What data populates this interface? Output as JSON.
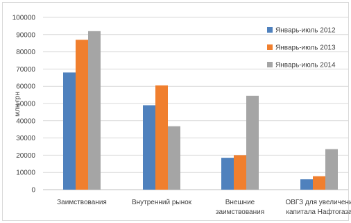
{
  "chart_data": {
    "type": "bar",
    "ylabel": "млн грн",
    "ylim": [
      0,
      100000
    ],
    "yticks": [
      0,
      10000,
      20000,
      30000,
      40000,
      50000,
      60000,
      70000,
      80000,
      90000,
      100000
    ],
    "grid": true,
    "legend_position": "right",
    "categories": [
      [
        "Заимствования"
      ],
      [
        "Внутренний рынок"
      ],
      [
        "Внешние",
        "заимствования"
      ],
      [
        "ОВГЗ для увеличени",
        "капитала Нафтогаза"
      ]
    ],
    "series": [
      {
        "name": "Январь-июль 2012",
        "color": "#4f81bd",
        "values": [
          68000,
          49000,
          18500,
          6000
        ]
      },
      {
        "name": "Январь-июль 2013",
        "color": "#f07f2e",
        "values": [
          87000,
          60500,
          20000,
          7800
        ]
      },
      {
        "name": "Январь-июль 2014",
        "color": "#a5a5a5",
        "values": [
          92000,
          36800,
          54500,
          23500
        ]
      }
    ]
  }
}
